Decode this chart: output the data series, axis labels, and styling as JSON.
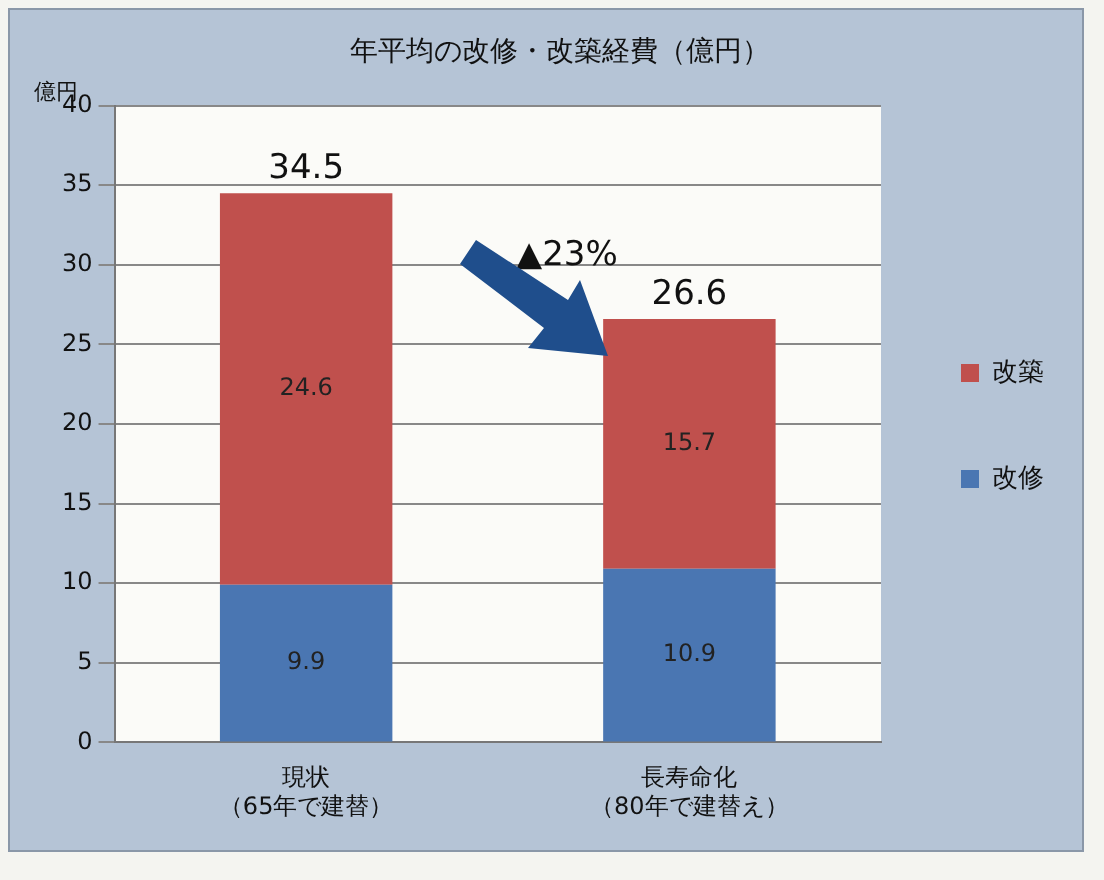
{
  "chart_data": {
    "type": "bar",
    "title": "年平均の改修・改築経費（億円）",
    "ylabel": "億円",
    "categories": [
      "現状（65年で建替）",
      "長寿命化（80年で建替え）"
    ],
    "series": [
      {
        "name": "改修",
        "color": "#4a76b2",
        "values": [
          9.9,
          10.9
        ]
      },
      {
        "name": "改築",
        "color": "#c0504d",
        "values": [
          24.6,
          15.7
        ]
      }
    ],
    "stacked": true,
    "totals": [
      "34.5",
      "26.6"
    ],
    "data_labels": true,
    "ylim": [
      0,
      40
    ],
    "yticks": [
      0,
      5,
      10,
      15,
      20,
      25,
      30,
      35,
      40
    ],
    "grid": "y",
    "legend": "right",
    "annotations": [
      "▲23%"
    ]
  }
}
